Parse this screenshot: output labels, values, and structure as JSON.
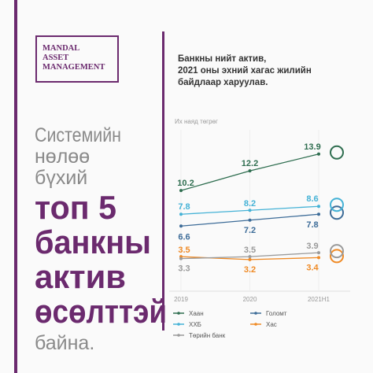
{
  "logo": [
    "MANDAL",
    "ASSET",
    "MANAGEMENT"
  ],
  "headline": {
    "intro": [
      "Системийн",
      "нөлөө",
      "бүхий"
    ],
    "bold": [
      "топ 5",
      "банкны",
      "актив",
      "өсөлттэй"
    ],
    "outro": "байна."
  },
  "chart_data": {
    "type": "line",
    "title": [
      "Банкны нийт актив,",
      "2021 оны эхний хагас жилийн",
      "байдлаар харуулав."
    ],
    "y_label": "Их наяд төгрөг",
    "categories": [
      "2019",
      "2020",
      "2021Н1"
    ],
    "ylim": [
      0,
      15
    ],
    "series": [
      {
        "name": "Хаан",
        "color": "#2f6e50",
        "values": [
          10.2,
          12.2,
          13.9
        ]
      },
      {
        "name": "Голомт",
        "color": "#3d6c98",
        "values": [
          6.6,
          7.2,
          7.8
        ]
      },
      {
        "name": "ХХБ",
        "color": "#45b2d6",
        "values": [
          7.8,
          8.2,
          8.6
        ]
      },
      {
        "name": "Хас",
        "color": "#ef8a25",
        "values": [
          3.5,
          3.2,
          3.4
        ]
      },
      {
        "name": "Төрийн банк",
        "color": "#9a9a9a",
        "values": [
          3.3,
          3.5,
          3.9
        ]
      }
    ]
  }
}
